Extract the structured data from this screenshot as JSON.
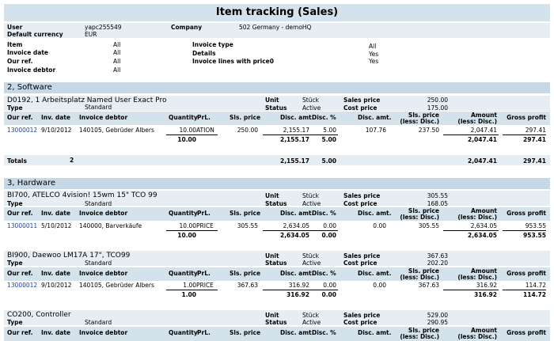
{
  "title": "Item tracking (Sales)",
  "filters": {
    "user_label": "User",
    "user_value": "yapc255549",
    "company_label": "Company",
    "company_value": "502 Germany - demoHQ",
    "currency_label": "Default currency",
    "currency_value": "EUR",
    "item_label": "Item",
    "item_value": "All",
    "invoice_type_label": "Invoice type",
    "invoice_type_value": "All",
    "invoice_date_label": "Invoice date",
    "invoice_date_value": "All",
    "details_label": "Details",
    "details_value": "Yes",
    "our_ref_label": "Our ref.",
    "our_ref_value": "All",
    "lines_price0_label": "Invoice lines with price0",
    "lines_price0_value": "Yes",
    "invoice_debtor_label": "Invoice debtor",
    "invoice_debtor_value": "All"
  },
  "labels": {
    "type": "Type",
    "unit": "Unit",
    "status": "Status",
    "sales_price": "Sales price",
    "cost_price": "Cost price"
  },
  "columns": {
    "our_ref": "Our ref.",
    "inv_date": "Inv. date",
    "invoice_debtor": "Invoice debtor",
    "quantity": "Quantity",
    "prl": "PrL.",
    "sls_price": "Sls. price",
    "disc_amt_disc": "Disc. amt.",
    "disc_pct": "Disc. %",
    "disc_amt": "Disc. amt.",
    "sls_price_less_1": "Sls. price",
    "sls_price_less_2": "(less: Disc.)",
    "amount_less_1": "Amount",
    "amount_less_2": "(less: Disc.)",
    "gross_profit": "Gross profit"
  },
  "section1": {
    "header": "2, Software",
    "item": {
      "name": "D0192, 1 Arbeitsplatz Named User Exact Pro",
      "type": "Standard",
      "unit": "Stück",
      "status": "Active",
      "sales_price": "250.00",
      "cost_price": "175.00",
      "row": {
        "our_ref": "13000012",
        "inv_date": "9/10/2012",
        "debtor": "140105, Gebrüder Albers",
        "quantity": "10.00",
        "prl": "ATION",
        "sls_price": "250.00",
        "disc_amt_disc": "2,155.17",
        "disc_pct": "5.00",
        "disc_amt": "107.76",
        "sls_price_less": "237.50",
        "amount_less": "2,047.41",
        "gross_profit": "297.41"
      },
      "totals": {
        "quantity": "10.00",
        "disc_amt_disc": "2,155.17",
        "disc_pct": "5.00",
        "amount_less": "2,047.41",
        "gross_profit": "297.41"
      }
    },
    "grand": {
      "label": "Totals",
      "count": "2",
      "disc_amt_disc": "2,155.17",
      "disc_pct": "5.00",
      "amount_less": "2,047.41",
      "gross_profit": "297.41"
    }
  },
  "section2": {
    "header": "3, Hardware",
    "item1": {
      "name": "BI700, ATELCO 4vision! 15wm 15\" TCO 99",
      "type": "Standard",
      "unit": "Stück",
      "status": "Active",
      "sales_price": "305.55",
      "cost_price": "168.05",
      "row": {
        "our_ref": "13000011",
        "inv_date": "5/10/2012",
        "debtor": "140000, Barverkäufe",
        "quantity": "10.00",
        "prl": "PRICE",
        "sls_price": "305.55",
        "disc_amt_disc": "2,634.05",
        "disc_pct": "0.00",
        "disc_amt": "0.00",
        "sls_price_less": "305.55",
        "amount_less": "2,634.05",
        "gross_profit": "953.55"
      },
      "totals": {
        "quantity": "10.00",
        "disc_amt_disc": "2,634.05",
        "disc_pct": "0.00",
        "amount_less": "2,634.05",
        "gross_profit": "953.55"
      }
    },
    "item2": {
      "name": "BI900, Daewoo LM17A 17\", TCO99",
      "type": "Standard",
      "unit": "Stück",
      "status": "Active",
      "sales_price": "367.63",
      "cost_price": "202.20",
      "row": {
        "our_ref": "13000012",
        "inv_date": "9/10/2012",
        "debtor": "140105, Gebrüder Albers",
        "quantity": "1.00",
        "prl": "PRICE",
        "sls_price": "367.63",
        "disc_amt_disc": "316.92",
        "disc_pct": "0.00",
        "disc_amt": "0.00",
        "sls_price_less": "367.63",
        "amount_less": "316.92",
        "gross_profit": "114.72"
      },
      "totals": {
        "quantity": "1.00",
        "disc_amt_disc": "316.92",
        "disc_pct": "0.00",
        "amount_less": "316.92",
        "gross_profit": "114.72"
      }
    },
    "item3": {
      "name": "CO200, Controller",
      "type": "Standard",
      "unit": "Stück",
      "status": "Active",
      "sales_price": "529.00",
      "cost_price": "290.95"
    }
  }
}
